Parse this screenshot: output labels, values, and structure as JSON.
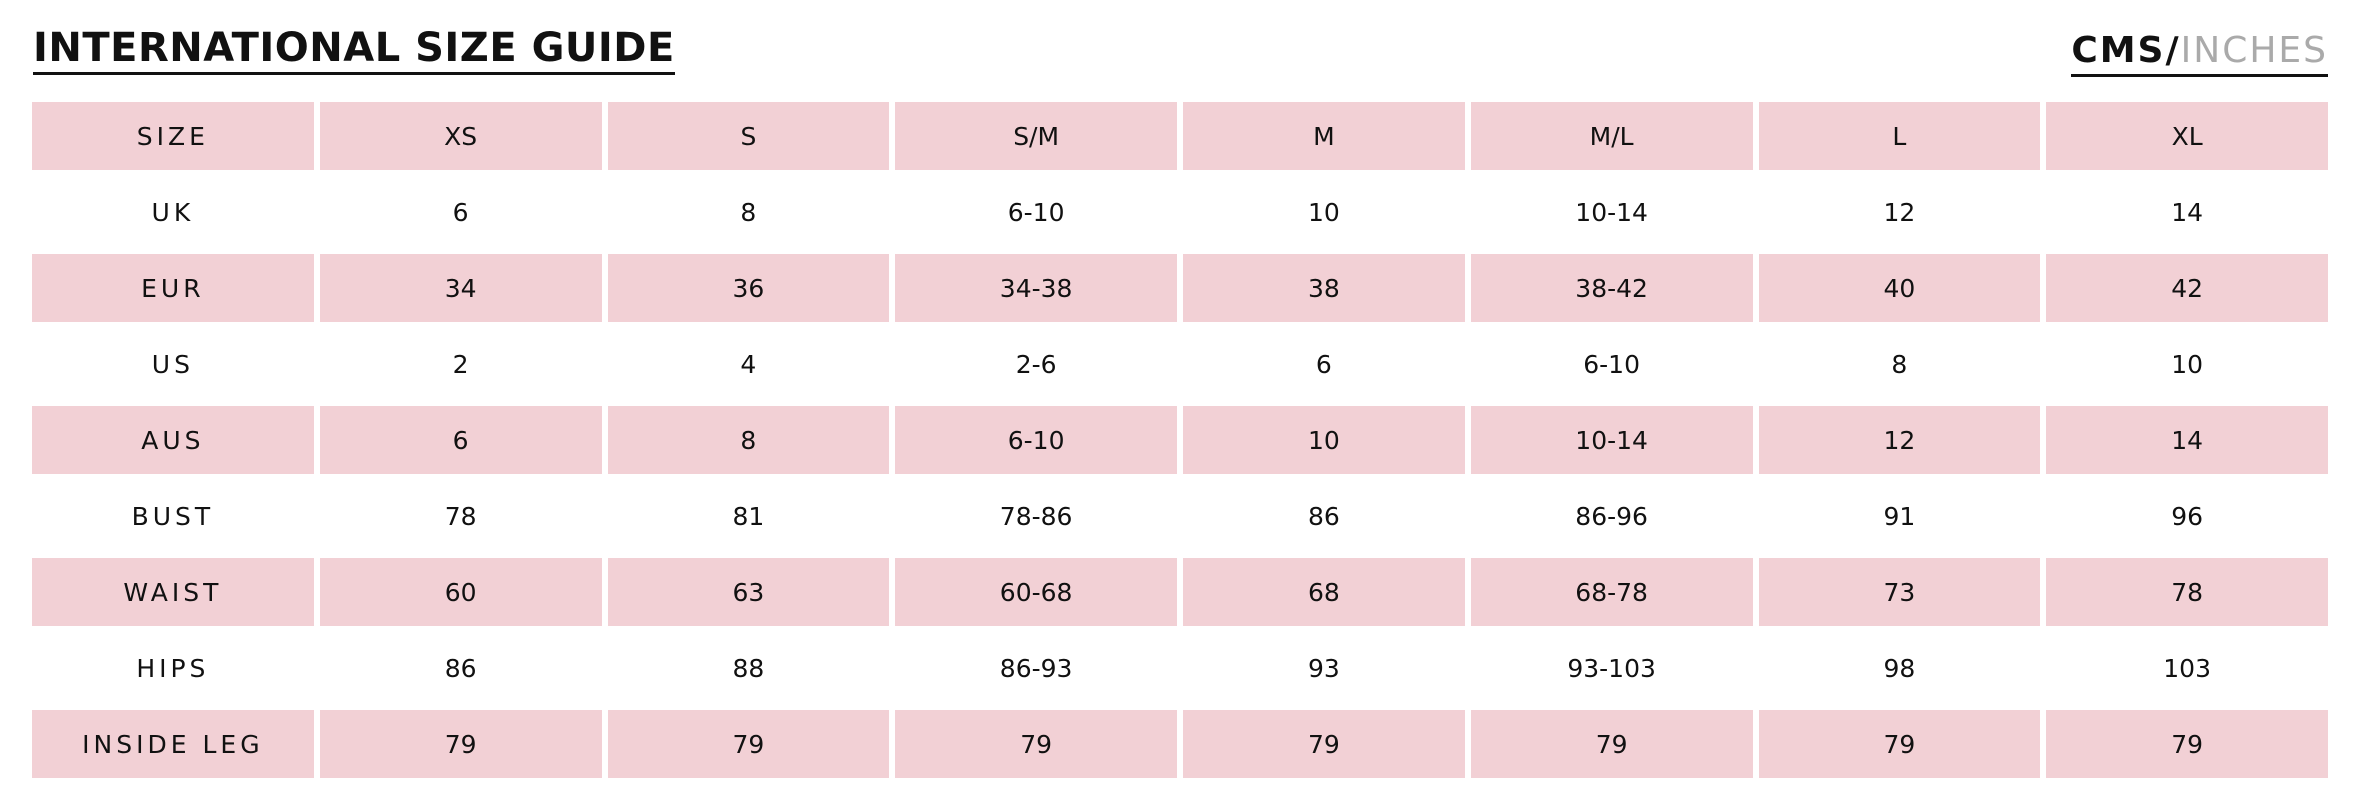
{
  "header": {
    "title": "INTERNATIONAL SIZE GUIDE",
    "units": [
      "CMS",
      "/",
      "INCHES"
    ]
  },
  "table": {
    "header": [
      "SIZE",
      "XS",
      "S",
      "S/M",
      "M",
      "M/L",
      "L",
      "XL"
    ],
    "rows": [
      [
        "UK",
        "6",
        "8",
        "6-10",
        "10",
        "10-14",
        "12",
        "14"
      ],
      [
        "EUR",
        "34",
        "36",
        "34-38",
        "38",
        "38-42",
        "40",
        "42"
      ],
      [
        "US",
        "2",
        "4",
        "2-6",
        "6",
        "6-10",
        "8",
        "10"
      ],
      [
        "AUS",
        "6",
        "8",
        "6-10",
        "10",
        "10-14",
        "12",
        "14"
      ],
      [
        "BUST",
        "78",
        "81",
        "78-86",
        "86",
        "86-96",
        "91",
        "96"
      ],
      [
        "WAIST",
        "60",
        "63",
        "60-68",
        "68",
        "68-78",
        "73",
        "78"
      ],
      [
        "HIPS",
        "86",
        "88",
        "86-93",
        "93",
        "93-103",
        "98",
        "103"
      ],
      [
        "INSIDE LEG",
        "79",
        "79",
        "79",
        "79",
        "79",
        "79",
        "79"
      ]
    ]
  }
}
